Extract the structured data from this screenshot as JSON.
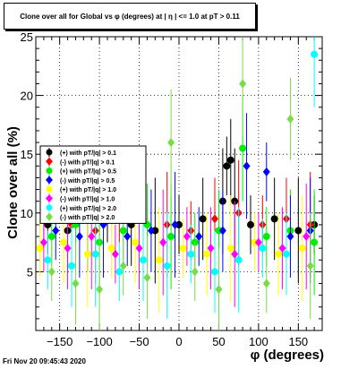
{
  "chart_data": {
    "type": "scatter",
    "title": "Clone  over all for Global vs φ (degrees) at | η | <= 1.0 at pT > 0.11",
    "xlabel": "φ (degrees)",
    "ylabel": "Clone  over all (%)",
    "xlim": [
      -180,
      180
    ],
    "ylim": [
      0,
      25
    ],
    "xticks": [
      "−150",
      "−100",
      "−50",
      "0",
      "50",
      "100",
      "150"
    ],
    "xtick_values": [
      -150,
      -100,
      -50,
      0,
      50,
      100,
      150
    ],
    "yticks": [
      "5",
      "10",
      "15",
      "20",
      "25"
    ],
    "ytick_values": [
      5,
      10,
      15,
      20,
      25
    ],
    "grid": true,
    "legend_position": "left-middle",
    "series": [
      {
        "name": "(+) with pT/|q| > 0.1",
        "color": "#000000",
        "marker": "circle",
        "x": [
          -165,
          -140,
          -115,
          -90,
          -60,
          -30,
          0,
          30,
          55,
          60,
          65,
          70,
          90,
          120,
          150,
          170
        ],
        "y": [
          9,
          8.5,
          9.5,
          10,
          9,
          8.5,
          9,
          9.5,
          11,
          14,
          14.5,
          11,
          9,
          9.5,
          8.5,
          9
        ]
      },
      {
        "name": "(-) with pT/|q| > 0.1",
        "color": "#ff0000",
        "marker": "diamond",
        "x": [
          -170,
          -135,
          -105,
          -75,
          -45,
          -15,
          15,
          45,
          75,
          105,
          135,
          165
        ],
        "y": [
          9.5,
          9,
          8.5,
          10,
          9.5,
          9,
          8.5,
          9.5,
          10,
          9,
          9.5,
          9
        ]
      },
      {
        "name": "(+) with pT/|q| > 0.5",
        "color": "#00ee00",
        "marker": "circle",
        "x": [
          -160,
          -130,
          -100,
          -70,
          -40,
          -10,
          20,
          50,
          80,
          110,
          140,
          170
        ],
        "y": [
          8,
          9,
          7.5,
          8.5,
          9,
          8,
          7.5,
          8.5,
          15.5,
          8,
          8.5,
          7.5
        ]
      },
      {
        "name": "(-) with pT/|q| > 0.5",
        "color": "#0000ff",
        "marker": "diamond",
        "x": [
          -155,
          -125,
          -95,
          -65,
          -35,
          -5,
          25,
          55,
          85,
          110,
          140,
          165
        ],
        "y": [
          8.5,
          8,
          9,
          8,
          8.5,
          9,
          8,
          8.5,
          14,
          13.5,
          8,
          8.5
        ]
      },
      {
        "name": "(+) with pT/|q| > 1.0",
        "color": "#ffff00",
        "marker": "circle",
        "x": [
          -175,
          -145,
          -115,
          -85,
          -55,
          -25,
          5,
          35,
          65,
          95,
          125,
          155
        ],
        "y": [
          7,
          7.5,
          6.5,
          7,
          7.5,
          6,
          7,
          6.5,
          7,
          7.5,
          6.5,
          7
        ]
      },
      {
        "name": "(-) with pT/|q| > 1.0",
        "color": "#ff00ff",
        "marker": "diamond",
        "x": [
          -170,
          -140,
          -110,
          -80,
          -50,
          -20,
          10,
          40,
          70,
          100,
          130,
          160
        ],
        "y": [
          7.5,
          7,
          8,
          6.5,
          7,
          7.5,
          8,
          7,
          6.5,
          7.5,
          7,
          8
        ]
      },
      {
        "name": "(+) with pT/|q| > 2.0",
        "color": "#00ffff",
        "marker": "circle",
        "x": [
          -165,
          -135,
          -105,
          -75,
          -45,
          -15,
          15,
          45,
          75,
          105,
          135,
          170
        ],
        "y": [
          6,
          5.5,
          6.5,
          5,
          6,
          5.5,
          6.5,
          5,
          6,
          7,
          6.5,
          23.5
        ]
      },
      {
        "name": "(-) with pT/|q| > 2.0",
        "color": "#77dd44",
        "marker": "diamond",
        "x": [
          -160,
          -130,
          -100,
          -70,
          -40,
          -10,
          20,
          50,
          80,
          110,
          140,
          165
        ],
        "y": [
          5,
          4,
          3.5,
          5.5,
          4.5,
          16,
          5,
          3.5,
          21,
          4,
          18,
          5.5
        ]
      }
    ]
  },
  "footer_text": "Fri Nov 20 09:45:43 2020"
}
